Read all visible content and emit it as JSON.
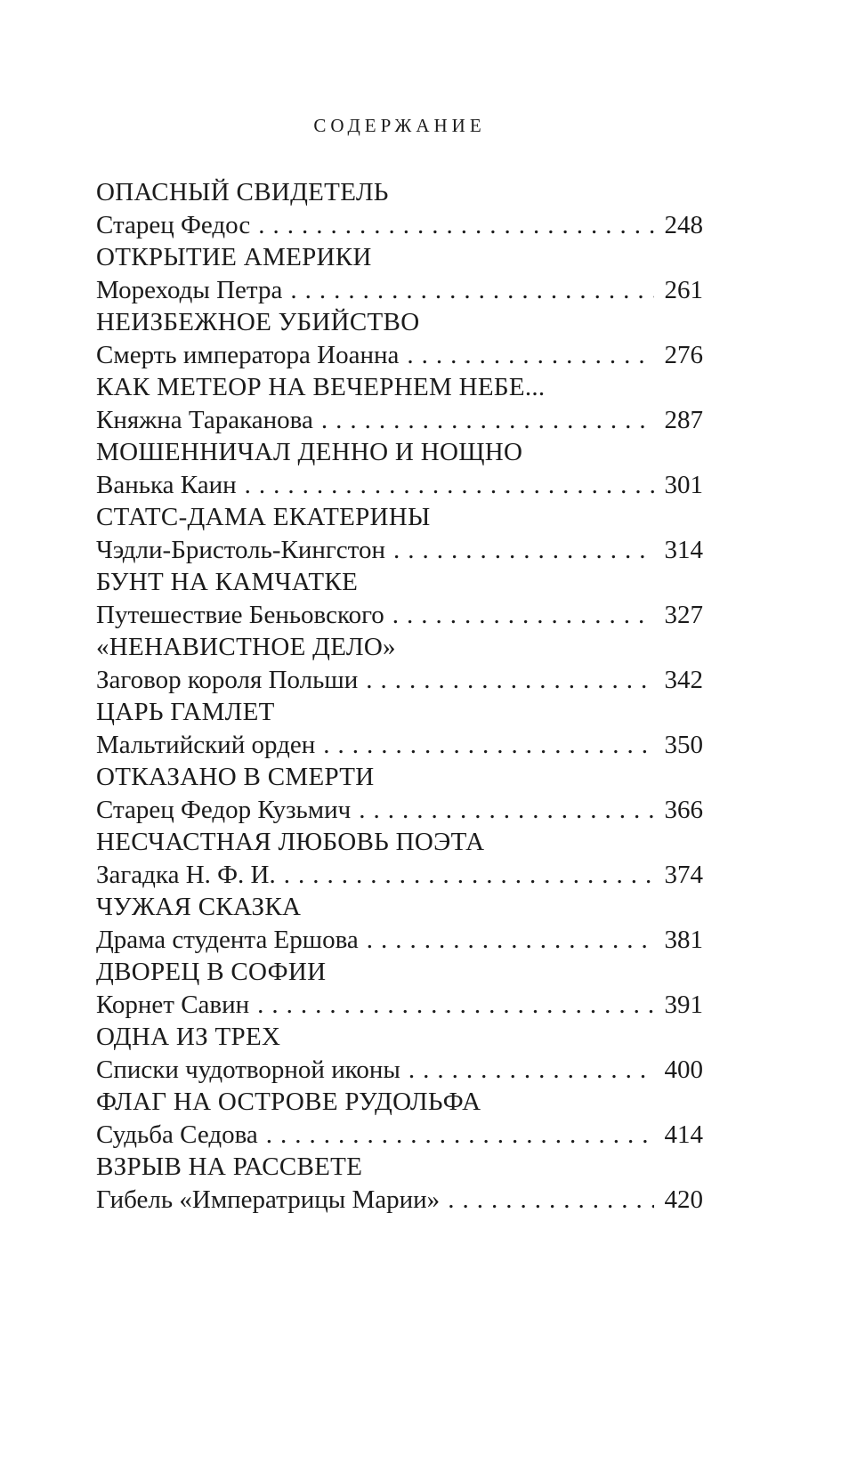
{
  "page": {
    "title": "СОДЕРЖАНИЕ",
    "entries": [
      {
        "title": "ОПАСНЫЙ СВИДЕТЕЛЬ",
        "subtitle": "Старец Федос",
        "page": "248"
      },
      {
        "title": "ОТКРЫТИЕ АМЕРИКИ",
        "subtitle": "Мореходы Петра",
        "page": "261"
      },
      {
        "title": "НЕИЗБЕЖНОЕ УБИЙСТВО",
        "subtitle": "Смерть императора Иоанна",
        "page": "276"
      },
      {
        "title": "КАК МЕТЕОР НА ВЕЧЕРНЕМ НЕБЕ...",
        "subtitle": "Княжна Тараканова",
        "page": "287"
      },
      {
        "title": "МОШЕННИЧАЛ ДЕННО И НОЩНО",
        "subtitle": "Ванька Каин",
        "page": "301"
      },
      {
        "title": "СТАТС-ДАМА ЕКАТЕРИНЫ",
        "subtitle": "Чэдли-Бристоль-Кингстон",
        "page": "314"
      },
      {
        "title": "БУНТ НА КАМЧАТКЕ",
        "subtitle": "Путешествие Беньовского",
        "page": "327"
      },
      {
        "title": "«НЕНАВИСТНОЕ ДЕЛО»",
        "subtitle": "Заговор короля Польши",
        "page": "342"
      },
      {
        "title": "ЦАРЬ ГАМЛЕТ",
        "subtitle": "Мальтийский орден",
        "page": "350"
      },
      {
        "title": "ОТКАЗАНО В СМЕРТИ",
        "subtitle": "Старец Федор Кузьмич",
        "page": "366"
      },
      {
        "title": "НЕСЧАСТНАЯ ЛЮБОВЬ ПОЭТА",
        "subtitle": "Загадка Н. Ф. И.",
        "page": "374"
      },
      {
        "title": "ЧУЖАЯ СКАЗКА",
        "subtitle": "Драма студента Ершова",
        "page": "381"
      },
      {
        "title": "ДВОРЕЦ В СОФИИ",
        "subtitle": "Корнет Савин",
        "page": "391"
      },
      {
        "title": "ОДНА ИЗ ТРЕХ",
        "subtitle": "Списки чудотворной иконы",
        "page": "400"
      },
      {
        "title": "ФЛАГ НА ОСТРОВЕ РУДОЛЬФА",
        "subtitle": "Судьба Седова",
        "page": "414"
      },
      {
        "title": "ВЗРЫВ НА РАССВЕТЕ",
        "subtitle": "Гибель «Императрицы Марии»",
        "page": "420"
      }
    ]
  },
  "colors": {
    "ink": "#1b1b1b",
    "paper": "#ffffff"
  }
}
